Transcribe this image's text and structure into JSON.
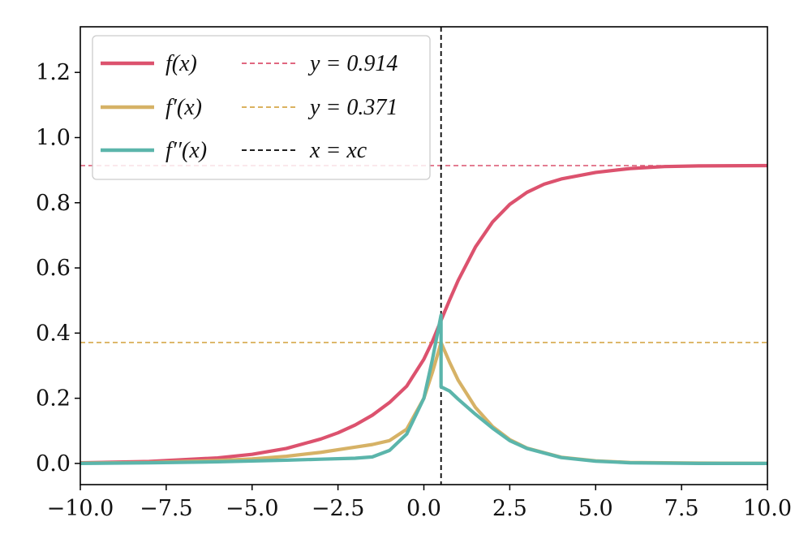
{
  "chart_data": {
    "type": "line",
    "title": "",
    "xlabel": "",
    "ylabel": "",
    "xlim": [
      -10,
      10
    ],
    "ylim": [
      -0.065,
      1.34
    ],
    "grid": false,
    "legend_position": "top-left",
    "x_ticks": [
      {
        "value": -10,
        "label": "−10.0"
      },
      {
        "value": -7.5,
        "label": "−7.5"
      },
      {
        "value": -5,
        "label": "−5.0"
      },
      {
        "value": -2.5,
        "label": "−2.5"
      },
      {
        "value": 0,
        "label": "0.0"
      },
      {
        "value": 2.5,
        "label": "2.5"
      },
      {
        "value": 5,
        "label": "5.0"
      },
      {
        "value": 7.5,
        "label": "7.5"
      },
      {
        "value": 10,
        "label": "10.0"
      }
    ],
    "y_ticks": [
      {
        "value": 0,
        "label": "0.0"
      },
      {
        "value": 0.2,
        "label": "0.2"
      },
      {
        "value": 0.4,
        "label": "0.4"
      },
      {
        "value": 0.6,
        "label": "0.6"
      },
      {
        "value": 0.8,
        "label": "0.8"
      },
      {
        "value": 1.0,
        "label": "1.0"
      },
      {
        "value": 1.2,
        "label": "1.2"
      }
    ],
    "series": [
      {
        "name": "f(x)",
        "color": "#dc526e",
        "x": [
          -10,
          -8,
          -6,
          -5,
          -4,
          -3,
          -2.5,
          -2,
          -1.5,
          -1,
          -0.5,
          0,
          0.25,
          0.5,
          0.75,
          1,
          1.5,
          2,
          2.5,
          3,
          3.5,
          4,
          5,
          6,
          7,
          8,
          10
        ],
        "y": [
          0.002,
          0.006,
          0.017,
          0.028,
          0.046,
          0.075,
          0.094,
          0.118,
          0.148,
          0.187,
          0.237,
          0.32,
          0.375,
          0.439,
          0.502,
          0.562,
          0.664,
          0.741,
          0.795,
          0.832,
          0.857,
          0.873,
          0.893,
          0.905,
          0.911,
          0.913,
          0.914
        ]
      },
      {
        "name": "f'(x)",
        "color": "#d6b266",
        "x": [
          -10,
          -8,
          -6,
          -5,
          -4,
          -3,
          -2,
          -1.5,
          -1,
          -0.5,
          0,
          0.25,
          0.5,
          0.75,
          1,
          1.5,
          2,
          2.5,
          3,
          4,
          5,
          6,
          8,
          10
        ],
        "y": [
          0.001,
          0.003,
          0.009,
          0.014,
          0.022,
          0.034,
          0.05,
          0.058,
          0.07,
          0.105,
          0.2,
          0.28,
          0.371,
          0.31,
          0.255,
          0.172,
          0.113,
          0.073,
          0.047,
          0.019,
          0.008,
          0.003,
          0.001,
          0.0
        ]
      },
      {
        "name": "f''(x)",
        "color": "#5bb5ab",
        "x": [
          -10,
          -8,
          -6,
          -4,
          -3,
          -2,
          -1.5,
          -1,
          -0.5,
          0,
          0.25,
          0.5,
          0.5,
          0.75,
          1,
          1.5,
          2,
          2.5,
          3,
          4,
          5,
          6,
          8,
          10
        ],
        "y": [
          0.0,
          0.002,
          0.005,
          0.01,
          0.013,
          0.016,
          0.02,
          0.04,
          0.09,
          0.2,
          0.32,
          0.455,
          0.235,
          0.222,
          0.197,
          0.151,
          0.108,
          0.07,
          0.046,
          0.018,
          0.007,
          0.002,
          0.0,
          0.0
        ]
      }
    ],
    "reference_lines": [
      {
        "name": "y=0.914",
        "orientation": "horizontal",
        "value": 0.914,
        "color": "#dc526e",
        "style": "dashed"
      },
      {
        "name": "y=0.371",
        "orientation": "horizontal",
        "value": 0.371,
        "color": "#d6a84a",
        "style": "dashed"
      },
      {
        "name": "x=x_c",
        "orientation": "vertical",
        "value": 0.5,
        "color": "#000000",
        "style": "dashed"
      }
    ],
    "legend": [
      {
        "label": "f(x)",
        "line_style": "solid",
        "color": "#dc526e"
      },
      {
        "label": "f′(x)",
        "line_style": "solid",
        "color": "#d6b266"
      },
      {
        "label": "f′′(x)",
        "line_style": "solid",
        "color": "#5bb5ab"
      },
      {
        "label": "y = 0.914",
        "line_style": "dashed",
        "color": "#dc526e"
      },
      {
        "label": "y = 0.371",
        "line_style": "dashed",
        "color": "#d6a84a"
      },
      {
        "label": "x = xc",
        "line_style": "dashed",
        "color": "#000000"
      }
    ]
  }
}
